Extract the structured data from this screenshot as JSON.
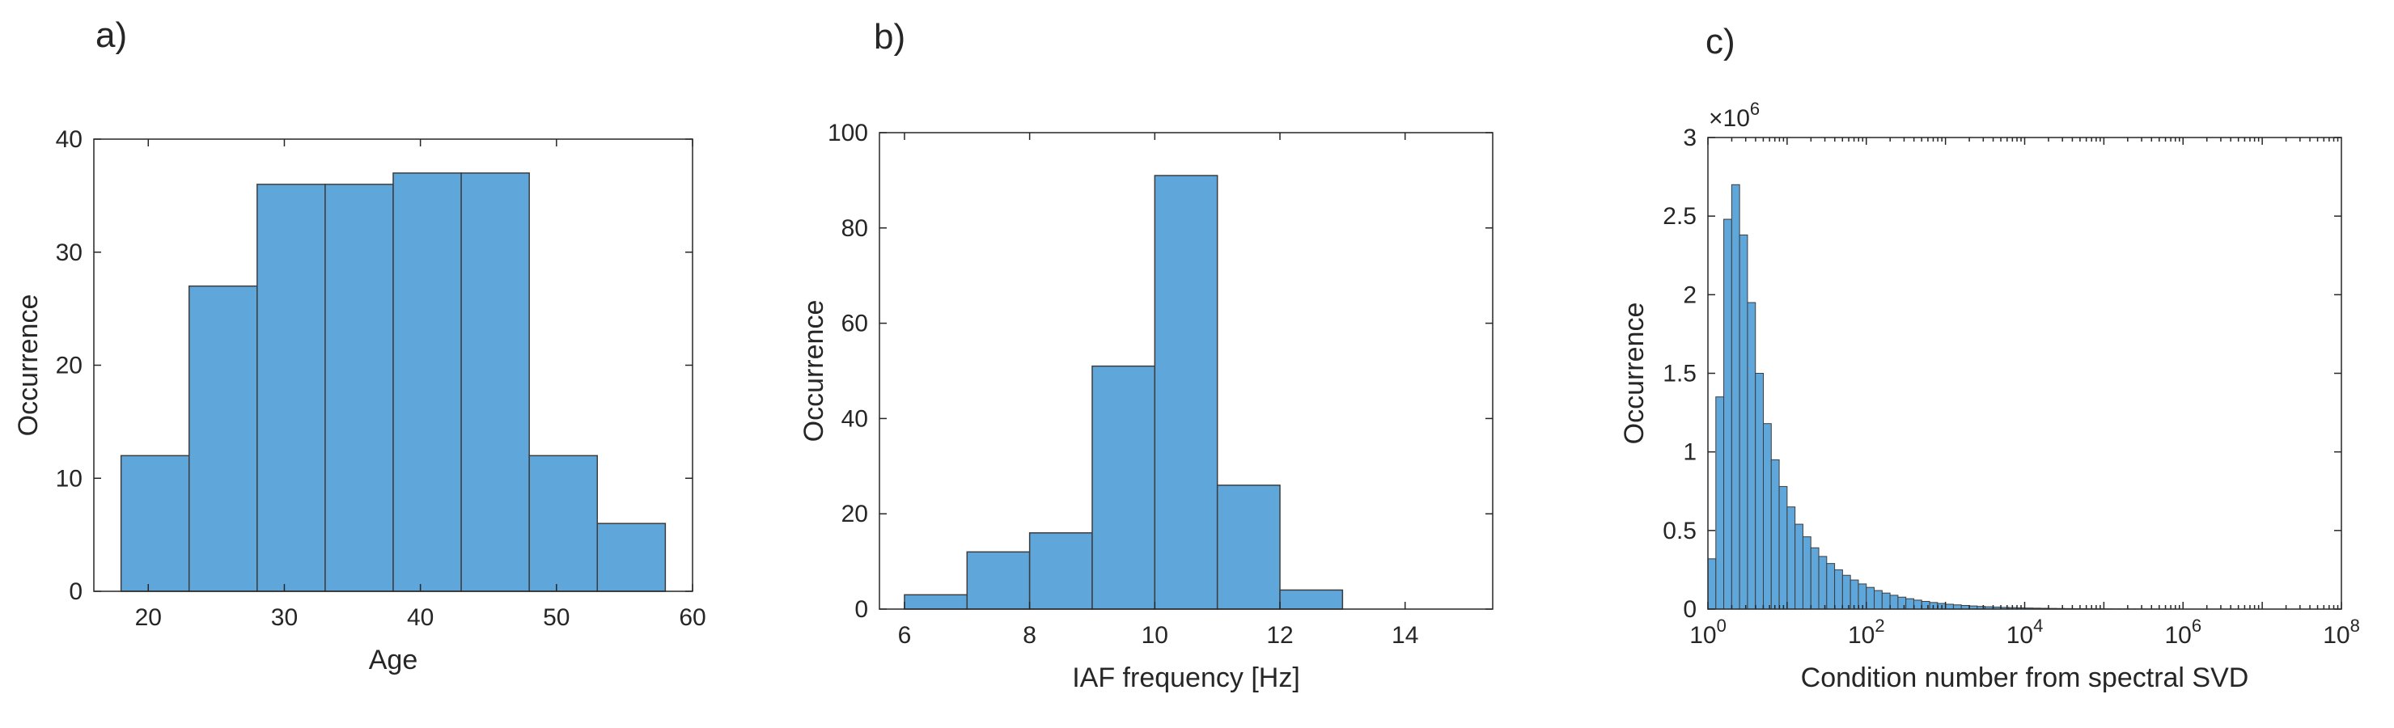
{
  "figure": {
    "panels": [
      "a)",
      "b)",
      "c)"
    ]
  },
  "chart_data": [
    {
      "type": "bar",
      "panel": "a)",
      "bin_edges": [
        18,
        23,
        28,
        33,
        38,
        43,
        48,
        53,
        58
      ],
      "values": [
        12,
        27,
        36,
        36,
        37,
        37,
        12,
        6
      ],
      "xlabel": "Age",
      "ylabel": "Occurrence",
      "xlim": [
        16,
        60
      ],
      "ylim": [
        0,
        40
      ],
      "xticks": [
        20,
        30,
        40,
        50,
        60
      ],
      "yticks": [
        0,
        10,
        20,
        30,
        40
      ],
      "bar_color": "#5fa6da",
      "edge_color": "#3d3d3d",
      "grid": false
    },
    {
      "type": "bar",
      "panel": "b)",
      "bin_edges": [
        6,
        7,
        8,
        9,
        10,
        11,
        12,
        13
      ],
      "values": [
        3,
        12,
        16,
        51,
        91,
        26,
        4
      ],
      "xlabel": "IAF frequency [Hz]",
      "ylabel": "Occurrence",
      "xlim": [
        5.6,
        15.4
      ],
      "ylim": [
        0,
        100
      ],
      "xticks": [
        6,
        8,
        10,
        12,
        14
      ],
      "yticks": [
        0,
        20,
        40,
        60,
        80,
        100
      ],
      "bar_color": "#5fa6da",
      "edge_color": "#3d3d3d",
      "grid": false
    },
    {
      "type": "bar",
      "panel": "c)",
      "x_scale": "log",
      "bin_edges_log10": [
        0.0,
        0.1,
        0.2,
        0.3,
        0.4,
        0.5,
        0.6,
        0.7,
        0.8,
        0.9,
        1.0,
        1.1,
        1.2,
        1.3,
        1.4,
        1.5,
        1.6,
        1.7,
        1.8,
        1.9,
        2.0,
        2.1,
        2.2,
        2.3,
        2.4,
        2.5,
        2.6,
        2.7,
        2.8,
        2.9,
        3.0,
        3.1,
        3.2,
        3.3,
        3.4,
        3.5,
        3.6,
        3.7,
        3.8,
        3.9,
        4.0,
        4.1,
        4.2,
        4.3,
        4.4,
        4.5,
        4.6,
        4.7,
        4.8,
        4.9,
        5.0,
        5.1,
        5.2,
        5.3,
        5.4,
        5.5,
        5.6,
        5.7,
        5.8,
        5.9,
        6.0,
        6.1,
        6.2,
        6.3,
        6.4,
        6.5,
        6.6,
        6.7,
        6.8,
        6.9,
        7.0,
        7.1,
        7.2,
        7.3,
        7.4,
        7.5,
        7.6,
        7.7,
        7.8,
        7.9,
        8.0
      ],
      "values": [
        320000,
        1350000,
        2480000,
        2700000,
        2380000,
        1950000,
        1500000,
        1180000,
        950000,
        780000,
        650000,
        540000,
        460000,
        390000,
        335000,
        290000,
        250000,
        215000,
        185000,
        160000,
        138000,
        118000,
        102000,
        88000,
        76000,
        66000,
        57000,
        49000,
        42000,
        36000,
        31000,
        27000,
        23000,
        20000,
        17000,
        15000,
        13000,
        11000,
        9500,
        8200,
        7000,
        6000,
        5200,
        4500,
        3900,
        3400,
        2900,
        2500,
        2200,
        1900,
        1600,
        1400,
        1200,
        1050,
        900,
        780,
        680,
        590,
        510,
        440,
        380,
        330,
        290,
        250,
        220,
        190,
        165,
        145,
        125,
        110,
        95,
        82,
        71,
        62,
        54,
        47,
        41,
        36,
        31,
        27
      ],
      "xlabel": "Condition number from spectral SVD",
      "ylabel": "Occurrence",
      "xlim": [
        1,
        100000000
      ],
      "ylim": [
        0,
        3000000
      ],
      "y_exponent": "×10",
      "y_exponent_power": "6",
      "xtick_base": "10",
      "xtick_powers": [
        "0",
        "2",
        "4",
        "6",
        "8"
      ],
      "ytick_labels": [
        "0",
        "0.5",
        "1",
        "1.5",
        "2",
        "2.5",
        "3"
      ],
      "bar_color": "#5fa6da",
      "edge_color": "#3d3d3d",
      "grid": false
    }
  ]
}
